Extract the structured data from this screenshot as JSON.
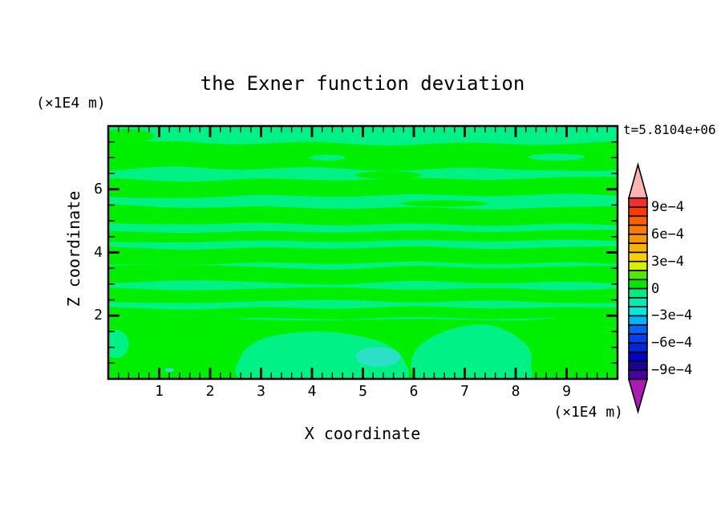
{
  "title": "the Exner function deviation",
  "timestamp": "t=5.8104e+06",
  "axes": {
    "x": {
      "label": "X coordinate",
      "unit": "(×1E4 m)",
      "min": 0,
      "max": 10,
      "major_ticks": [
        1,
        2,
        3,
        4,
        5,
        6,
        7,
        8,
        9
      ],
      "tick_labels": [
        "1",
        "2",
        "3",
        "4",
        "5",
        "6",
        "7",
        "8",
        "9"
      ],
      "minor_step": 0.2
    },
    "z": {
      "label": "Z coordinate",
      "unit": "(×1E4 m)",
      "min": 0,
      "max": 8,
      "major_ticks": [
        2,
        4,
        6
      ],
      "tick_labels": [
        "2",
        "4",
        "6"
      ],
      "minor_step": 0.5
    }
  },
  "colorbar": {
    "labels": [
      "9e-4",
      "6e-4",
      "3e-4",
      "0",
      "-3e-4",
      "-6e-4",
      "-9e-4"
    ],
    "label_boundary_index": [
      1,
      4,
      7,
      10,
      13,
      16,
      19
    ],
    "level_step": 0.0001,
    "top_value": 0.001,
    "bottom_value": -0.001,
    "colors": [
      "#f62d2d",
      "#fa3b00",
      "#f86000",
      "#f97c00",
      "#fa9700",
      "#fbb300",
      "#fcd000",
      "#d8f000",
      "#50e800",
      "#00e800",
      "#00ec82",
      "#00ecb4",
      "#00e8e0",
      "#00b4f8",
      "#0064f8",
      "#0040f0",
      "#0028d8",
      "#0000c8",
      "#1c0096",
      "#4600a0"
    ],
    "over_arrow_color": "#ffb4b4",
    "under_arrow_color": "#aa1ab4"
  },
  "chart_data": {
    "type": "contour",
    "title": "the Exner function deviation",
    "xlabel": "X coordinate",
    "ylabel": "Z coordinate",
    "axis_unit": "(×1E4 m)",
    "time_annotation": "t=5.8104e+06",
    "x_range": [
      0,
      10
    ],
    "z_range": [
      0,
      8
    ],
    "contour_interval": 0.0001,
    "value_range_shown": [
      -0.0003,
      0.0001
    ],
    "palette": {
      "green": "#00ee00",
      "spring": "#00f287",
      "aqua": "#2ce0c8"
    },
    "background_level": "spring",
    "bands": [
      {
        "color": "green",
        "ht": 0.4,
        "pts": [
          [
            -0.4,
            7.0
          ],
          [
            1.2,
            7.12
          ],
          [
            2.5,
            7.02
          ],
          [
            4.0,
            7.1
          ],
          [
            5.5,
            6.98
          ],
          [
            7.0,
            7.08
          ],
          [
            8.5,
            7.0
          ],
          [
            10.4,
            7.08
          ]
        ]
      },
      {
        "color": "green",
        "ht": 0.26,
        "pts": [
          [
            -0.4,
            6.08
          ],
          [
            1.5,
            5.98
          ],
          [
            3.0,
            6.08
          ],
          [
            4.5,
            6.02
          ],
          [
            6.0,
            6.1
          ],
          [
            7.5,
            6.04
          ],
          [
            9.0,
            6.12
          ],
          [
            10.4,
            6.08
          ]
        ]
      },
      {
        "color": "green",
        "ht": 0.26,
        "pts": [
          [
            -0.4,
            5.25
          ],
          [
            1.5,
            5.15
          ],
          [
            3.0,
            5.2
          ],
          [
            4.5,
            5.12
          ],
          [
            6.0,
            5.18
          ],
          [
            7.5,
            5.1
          ],
          [
            9.0,
            5.18
          ],
          [
            10.4,
            5.14
          ]
        ]
      },
      {
        "color": "green",
        "ht": 0.15,
        "pts": [
          [
            -0.4,
            4.52
          ],
          [
            1.5,
            4.47
          ],
          [
            3.0,
            4.53
          ],
          [
            4.5,
            4.48
          ],
          [
            6.0,
            4.55
          ],
          [
            7.5,
            4.5
          ],
          [
            9.0,
            4.56
          ],
          [
            10.4,
            4.52
          ]
        ]
      },
      {
        "color": "green",
        "ht": 0.24,
        "pts": [
          [
            -0.4,
            3.92
          ],
          [
            1.5,
            3.85
          ],
          [
            3.0,
            3.92
          ],
          [
            4.5,
            3.88
          ],
          [
            6.0,
            3.95
          ],
          [
            7.5,
            3.87
          ],
          [
            9.0,
            3.93
          ],
          [
            10.4,
            3.9
          ]
        ]
      },
      {
        "color": "green",
        "ht": 0.24,
        "pts": [
          [
            -0.4,
            3.28
          ],
          [
            1.5,
            3.36
          ],
          [
            3.0,
            3.3
          ],
          [
            4.5,
            3.22
          ],
          [
            6.0,
            3.34
          ],
          [
            7.5,
            3.26
          ],
          [
            9.0,
            3.32
          ],
          [
            10.4,
            3.28
          ]
        ]
      },
      {
        "color": "green",
        "ht": 0.2,
        "pts": [
          [
            -0.4,
            2.68
          ],
          [
            1.5,
            2.6
          ],
          [
            3.0,
            2.66
          ],
          [
            4.5,
            2.7
          ],
          [
            6.0,
            2.62
          ],
          [
            7.5,
            2.68
          ],
          [
            9.0,
            2.6
          ],
          [
            10.4,
            2.66
          ]
        ]
      },
      {
        "color": "green",
        "ht": 0.17,
        "pts": [
          [
            -0.4,
            2.1
          ],
          [
            1.5,
            2.02
          ],
          [
            3.0,
            2.1
          ],
          [
            4.5,
            2.05
          ],
          [
            6.0,
            2.13
          ],
          [
            7.5,
            2.06
          ],
          [
            9.0,
            2.1
          ],
          [
            10.4,
            2.04
          ]
        ]
      },
      {
        "color": "green",
        "ht": 0.95,
        "pts": [
          [
            -0.4,
            0.9
          ],
          [
            2.0,
            0.95
          ],
          [
            4.0,
            0.9
          ],
          [
            6.0,
            0.95
          ],
          [
            8.0,
            0.9
          ],
          [
            10.4,
            0.95
          ]
        ]
      }
    ],
    "blobs": [
      {
        "color": "spring",
        "pts": [
          [
            2.8,
            -0.1
          ],
          [
            2.6,
            0.7
          ],
          [
            3.1,
            1.3
          ],
          [
            4.2,
            1.5
          ],
          [
            5.3,
            1.2
          ],
          [
            5.8,
            0.6
          ],
          [
            5.6,
            -0.1
          ]
        ]
      },
      {
        "color": "spring",
        "pts": [
          [
            6.2,
            -0.1
          ],
          [
            6.0,
            0.8
          ],
          [
            6.6,
            1.5
          ],
          [
            7.5,
            1.7
          ],
          [
            8.2,
            1.1
          ],
          [
            8.3,
            0.4
          ],
          [
            8.1,
            -0.1
          ]
        ]
      }
    ],
    "lenses": [
      {
        "color": "spring",
        "cx": 8.8,
        "cy": 7.02,
        "rx": 0.55,
        "ry": 0.11
      },
      {
        "color": "spring",
        "cx": 4.3,
        "cy": 7.0,
        "rx": 0.35,
        "ry": 0.09
      },
      {
        "color": "spring",
        "cx": 0.15,
        "cy": 1.1,
        "rx": 0.25,
        "ry": 0.45
      },
      {
        "color": "green",
        "cx": 6.6,
        "cy": 5.55,
        "rx": 0.85,
        "ry": 0.1
      },
      {
        "color": "green",
        "cx": 5.5,
        "cy": 6.45,
        "rx": 0.65,
        "ry": 0.12
      },
      {
        "color": "green",
        "cx": 0.35,
        "cy": 7.68,
        "rx": 0.55,
        "ry": 0.22
      },
      {
        "color": "aqua",
        "cx": 5.3,
        "cy": 0.7,
        "rx": 0.44,
        "ry": 0.31
      },
      {
        "color": "aqua",
        "cx": 1.2,
        "cy": 0.28,
        "rx": 0.09,
        "ry": 0.07
      }
    ]
  }
}
